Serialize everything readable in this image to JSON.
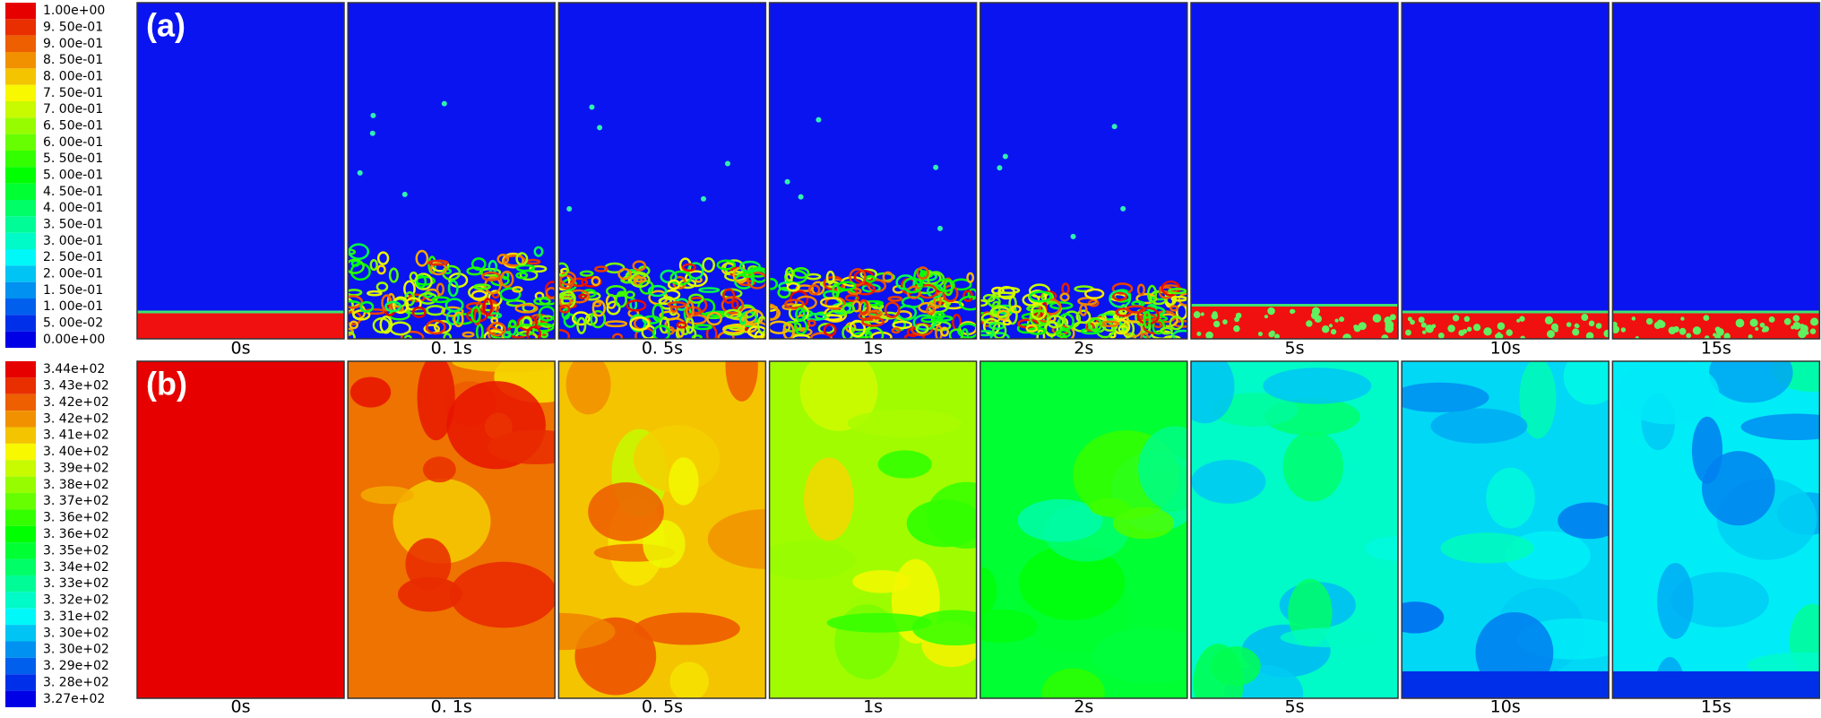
{
  "panels": [
    {
      "label": "(a)",
      "colorbar": [
        "1.00e+00",
        "9. 50e-01",
        "9. 00e-01",
        "8. 50e-01",
        "8. 00e-01",
        "7. 50e-01",
        "7. 00e-01",
        "6. 50e-01",
        "6. 00e-01",
        "5. 50e-01",
        "5. 00e-01",
        "4. 50e-01",
        "4. 00e-01",
        "3. 50e-01",
        "3. 00e-01",
        "2. 50e-01",
        "2. 00e-01",
        "1. 50e-01",
        "1. 00e-01",
        "5. 00e-02",
        "0.00e+00"
      ],
      "times": [
        "0s",
        "0. 1s",
        "0. 5s",
        "1s",
        "2s",
        "5s",
        "10s",
        "15s"
      ]
    },
    {
      "label": "(b)",
      "colorbar": [
        "3.44e+02",
        "3. 43e+02",
        "3. 42e+02",
        "3. 42e+02",
        "3. 41e+02",
        "3. 40e+02",
        "3. 39e+02",
        "3. 38e+02",
        "3. 37e+02",
        "3. 36e+02",
        "3. 36e+02",
        "3. 35e+02",
        "3. 34e+02",
        "3. 33e+02",
        "3. 32e+02",
        "3. 31e+02",
        "3. 30e+02",
        "3. 30e+02",
        "3. 29e+02",
        "3. 28e+02",
        "3.27e+02"
      ],
      "times": [
        "0s",
        "0. 1s",
        "0. 5s",
        "1s",
        "2s",
        "5s",
        "10s",
        "15s"
      ]
    }
  ]
}
